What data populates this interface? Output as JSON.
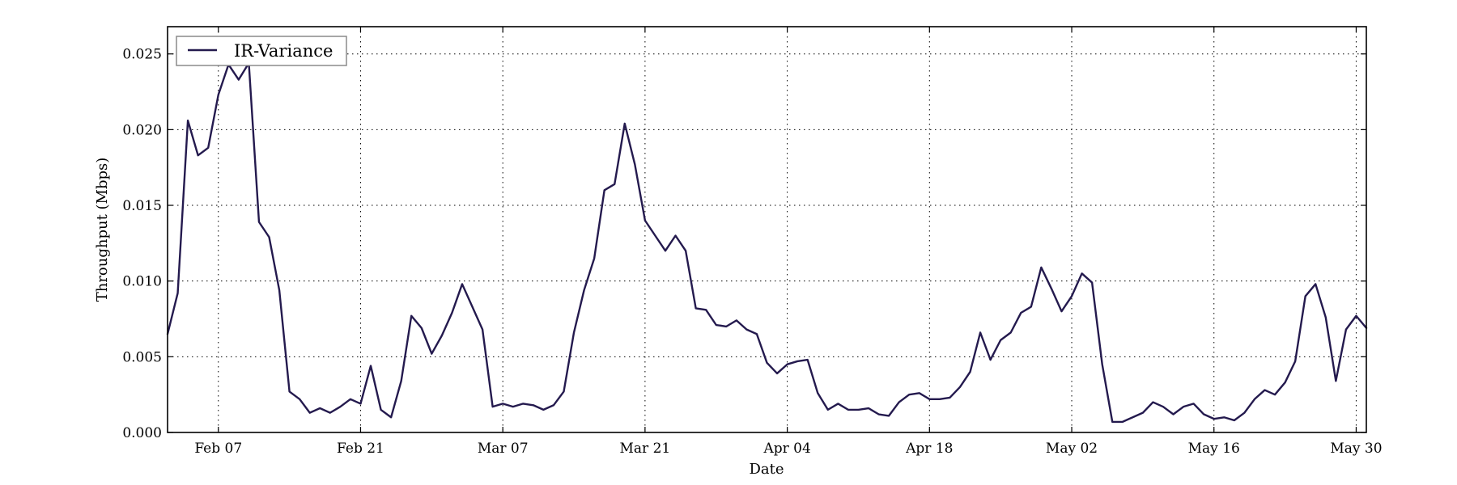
{
  "chart_data": {
    "type": "line",
    "xlabel": "Date",
    "ylabel": "Throughput (Mbps)",
    "legend": "top-left",
    "grid": true,
    "x_ticks": [
      {
        "date": "2015-02-07",
        "label": "Feb 07"
      },
      {
        "date": "2015-02-21",
        "label": "Feb 21"
      },
      {
        "date": "2015-03-07",
        "label": "Mar 07"
      },
      {
        "date": "2015-03-21",
        "label": "Mar 21"
      },
      {
        "date": "2015-04-04",
        "label": "Apr 04"
      },
      {
        "date": "2015-04-18",
        "label": "Apr 18"
      },
      {
        "date": "2015-05-02",
        "label": "May 02"
      },
      {
        "date": "2015-05-16",
        "label": "May 16"
      },
      {
        "date": "2015-05-30",
        "label": "May 30"
      }
    ],
    "xlim": [
      "2015-02-02",
      "2015-05-31"
    ],
    "y_ticks": [
      {
        "value": 0.0,
        "label": "0.000"
      },
      {
        "value": 0.005,
        "label": "0.005"
      },
      {
        "value": 0.01,
        "label": "0.010"
      },
      {
        "value": 0.015,
        "label": "0.015"
      },
      {
        "value": 0.02,
        "label": "0.020"
      },
      {
        "value": 0.025,
        "label": "0.025"
      }
    ],
    "ylim": [
      0,
      0.0268
    ],
    "series": [
      {
        "name": "IR-Variance",
        "color": "#241a4e",
        "points": [
          [
            "2015-02-02",
            0.0065
          ],
          [
            "2015-02-03",
            0.0092
          ],
          [
            "2015-02-04",
            0.0206
          ],
          [
            "2015-02-05",
            0.0183
          ],
          [
            "2015-02-06",
            0.0188
          ],
          [
            "2015-02-07",
            0.0223
          ],
          [
            "2015-02-08",
            0.0243
          ],
          [
            "2015-02-09",
            0.0233
          ],
          [
            "2015-02-10",
            0.0244
          ],
          [
            "2015-02-11",
            0.0139
          ],
          [
            "2015-02-12",
            0.0129
          ],
          [
            "2015-02-13",
            0.0094
          ],
          [
            "2015-02-14",
            0.0027
          ],
          [
            "2015-02-15",
            0.0022
          ],
          [
            "2015-02-16",
            0.0013
          ],
          [
            "2015-02-17",
            0.0016
          ],
          [
            "2015-02-18",
            0.0013
          ],
          [
            "2015-02-19",
            0.0017
          ],
          [
            "2015-02-20",
            0.0022
          ],
          [
            "2015-02-21",
            0.0019
          ],
          [
            "2015-02-22",
            0.0044
          ],
          [
            "2015-02-23",
            0.0015
          ],
          [
            "2015-02-24",
            0.001
          ],
          [
            "2015-02-25",
            0.0034
          ],
          [
            "2015-02-26",
            0.0077
          ],
          [
            "2015-02-27",
            0.0069
          ],
          [
            "2015-02-28",
            0.0052
          ],
          [
            "2015-03-01",
            0.0064
          ],
          [
            "2015-03-02",
            0.0079
          ],
          [
            "2015-03-03",
            0.0098
          ],
          [
            "2015-03-04",
            0.0083
          ],
          [
            "2015-03-05",
            0.0068
          ],
          [
            "2015-03-06",
            0.0017
          ],
          [
            "2015-03-07",
            0.0019
          ],
          [
            "2015-03-08",
            0.0017
          ],
          [
            "2015-03-09",
            0.0019
          ],
          [
            "2015-03-10",
            0.0018
          ],
          [
            "2015-03-11",
            0.0015
          ],
          [
            "2015-03-12",
            0.0018
          ],
          [
            "2015-03-13",
            0.0027
          ],
          [
            "2015-03-14",
            0.0066
          ],
          [
            "2015-03-15",
            0.0094
          ],
          [
            "2015-03-16",
            0.0115
          ],
          [
            "2015-03-17",
            0.016
          ],
          [
            "2015-03-18",
            0.0164
          ],
          [
            "2015-03-19",
            0.0204
          ],
          [
            "2015-03-20",
            0.0177
          ],
          [
            "2015-03-21",
            0.014
          ],
          [
            "2015-03-22",
            0.013
          ],
          [
            "2015-03-23",
            0.012
          ],
          [
            "2015-03-24",
            0.013
          ],
          [
            "2015-03-25",
            0.012
          ],
          [
            "2015-03-26",
            0.0082
          ],
          [
            "2015-03-27",
            0.0081
          ],
          [
            "2015-03-28",
            0.0071
          ],
          [
            "2015-03-29",
            0.007
          ],
          [
            "2015-03-30",
            0.0074
          ],
          [
            "2015-03-31",
            0.0068
          ],
          [
            "2015-04-01",
            0.0065
          ],
          [
            "2015-04-02",
            0.0046
          ],
          [
            "2015-04-03",
            0.0039
          ],
          [
            "2015-04-04",
            0.0045
          ],
          [
            "2015-04-05",
            0.0047
          ],
          [
            "2015-04-06",
            0.0048
          ],
          [
            "2015-04-07",
            0.0026
          ],
          [
            "2015-04-08",
            0.0015
          ],
          [
            "2015-04-09",
            0.0019
          ],
          [
            "2015-04-10",
            0.0015
          ],
          [
            "2015-04-11",
            0.0015
          ],
          [
            "2015-04-12",
            0.0016
          ],
          [
            "2015-04-13",
            0.0012
          ],
          [
            "2015-04-14",
            0.0011
          ],
          [
            "2015-04-15",
            0.002
          ],
          [
            "2015-04-16",
            0.0025
          ],
          [
            "2015-04-17",
            0.0026
          ],
          [
            "2015-04-18",
            0.0022
          ],
          [
            "2015-04-19",
            0.0022
          ],
          [
            "2015-04-20",
            0.0023
          ],
          [
            "2015-04-21",
            0.003
          ],
          [
            "2015-04-22",
            0.004
          ],
          [
            "2015-04-23",
            0.0066
          ],
          [
            "2015-04-24",
            0.0048
          ],
          [
            "2015-04-25",
            0.0061
          ],
          [
            "2015-04-26",
            0.0066
          ],
          [
            "2015-04-27",
            0.0079
          ],
          [
            "2015-04-28",
            0.0083
          ],
          [
            "2015-04-29",
            0.0109
          ],
          [
            "2015-04-30",
            0.0095
          ],
          [
            "2015-05-01",
            0.008
          ],
          [
            "2015-05-02",
            0.009
          ],
          [
            "2015-05-03",
            0.0105
          ],
          [
            "2015-05-04",
            0.0099
          ],
          [
            "2015-05-05",
            0.0045
          ],
          [
            "2015-05-06",
            0.0007
          ],
          [
            "2015-05-07",
            0.0007
          ],
          [
            "2015-05-08",
            0.001
          ],
          [
            "2015-05-09",
            0.0013
          ],
          [
            "2015-05-10",
            0.002
          ],
          [
            "2015-05-11",
            0.0017
          ],
          [
            "2015-05-12",
            0.0012
          ],
          [
            "2015-05-13",
            0.0017
          ],
          [
            "2015-05-14",
            0.0019
          ],
          [
            "2015-05-15",
            0.0012
          ],
          [
            "2015-05-16",
            0.0009
          ],
          [
            "2015-05-17",
            0.001
          ],
          [
            "2015-05-18",
            0.0008
          ],
          [
            "2015-05-19",
            0.0013
          ],
          [
            "2015-05-20",
            0.0022
          ],
          [
            "2015-05-21",
            0.0028
          ],
          [
            "2015-05-22",
            0.0025
          ],
          [
            "2015-05-23",
            0.0033
          ],
          [
            "2015-05-24",
            0.0047
          ],
          [
            "2015-05-25",
            0.009
          ],
          [
            "2015-05-26",
            0.0098
          ],
          [
            "2015-05-27",
            0.0076
          ],
          [
            "2015-05-28",
            0.0034
          ],
          [
            "2015-05-29",
            0.0068
          ],
          [
            "2015-05-30",
            0.0077
          ],
          [
            "2015-05-31",
            0.0069
          ]
        ]
      }
    ]
  }
}
